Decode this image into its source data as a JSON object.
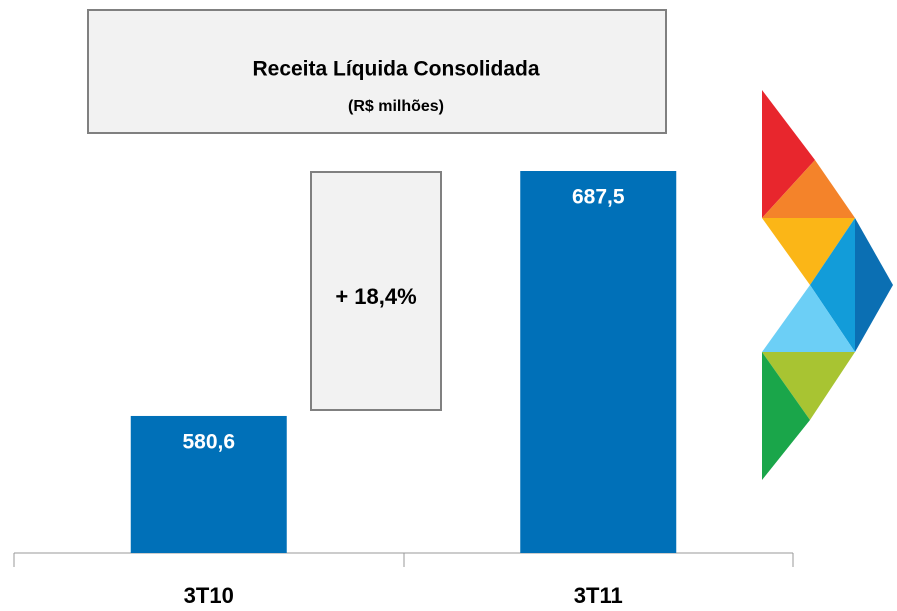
{
  "chart_data": {
    "type": "bar",
    "title": "Receita Líquida Consolidada",
    "subtitle": "(R$ milhões)",
    "annotation": "+ 18,4%",
    "categories": [
      "3T10",
      "3T11"
    ],
    "values": [
      580.6,
      687.5
    ],
    "value_labels": [
      "580,6",
      "687,5"
    ],
    "color": "#0070b8",
    "ylim": [
      520.8,
      687.5
    ]
  }
}
